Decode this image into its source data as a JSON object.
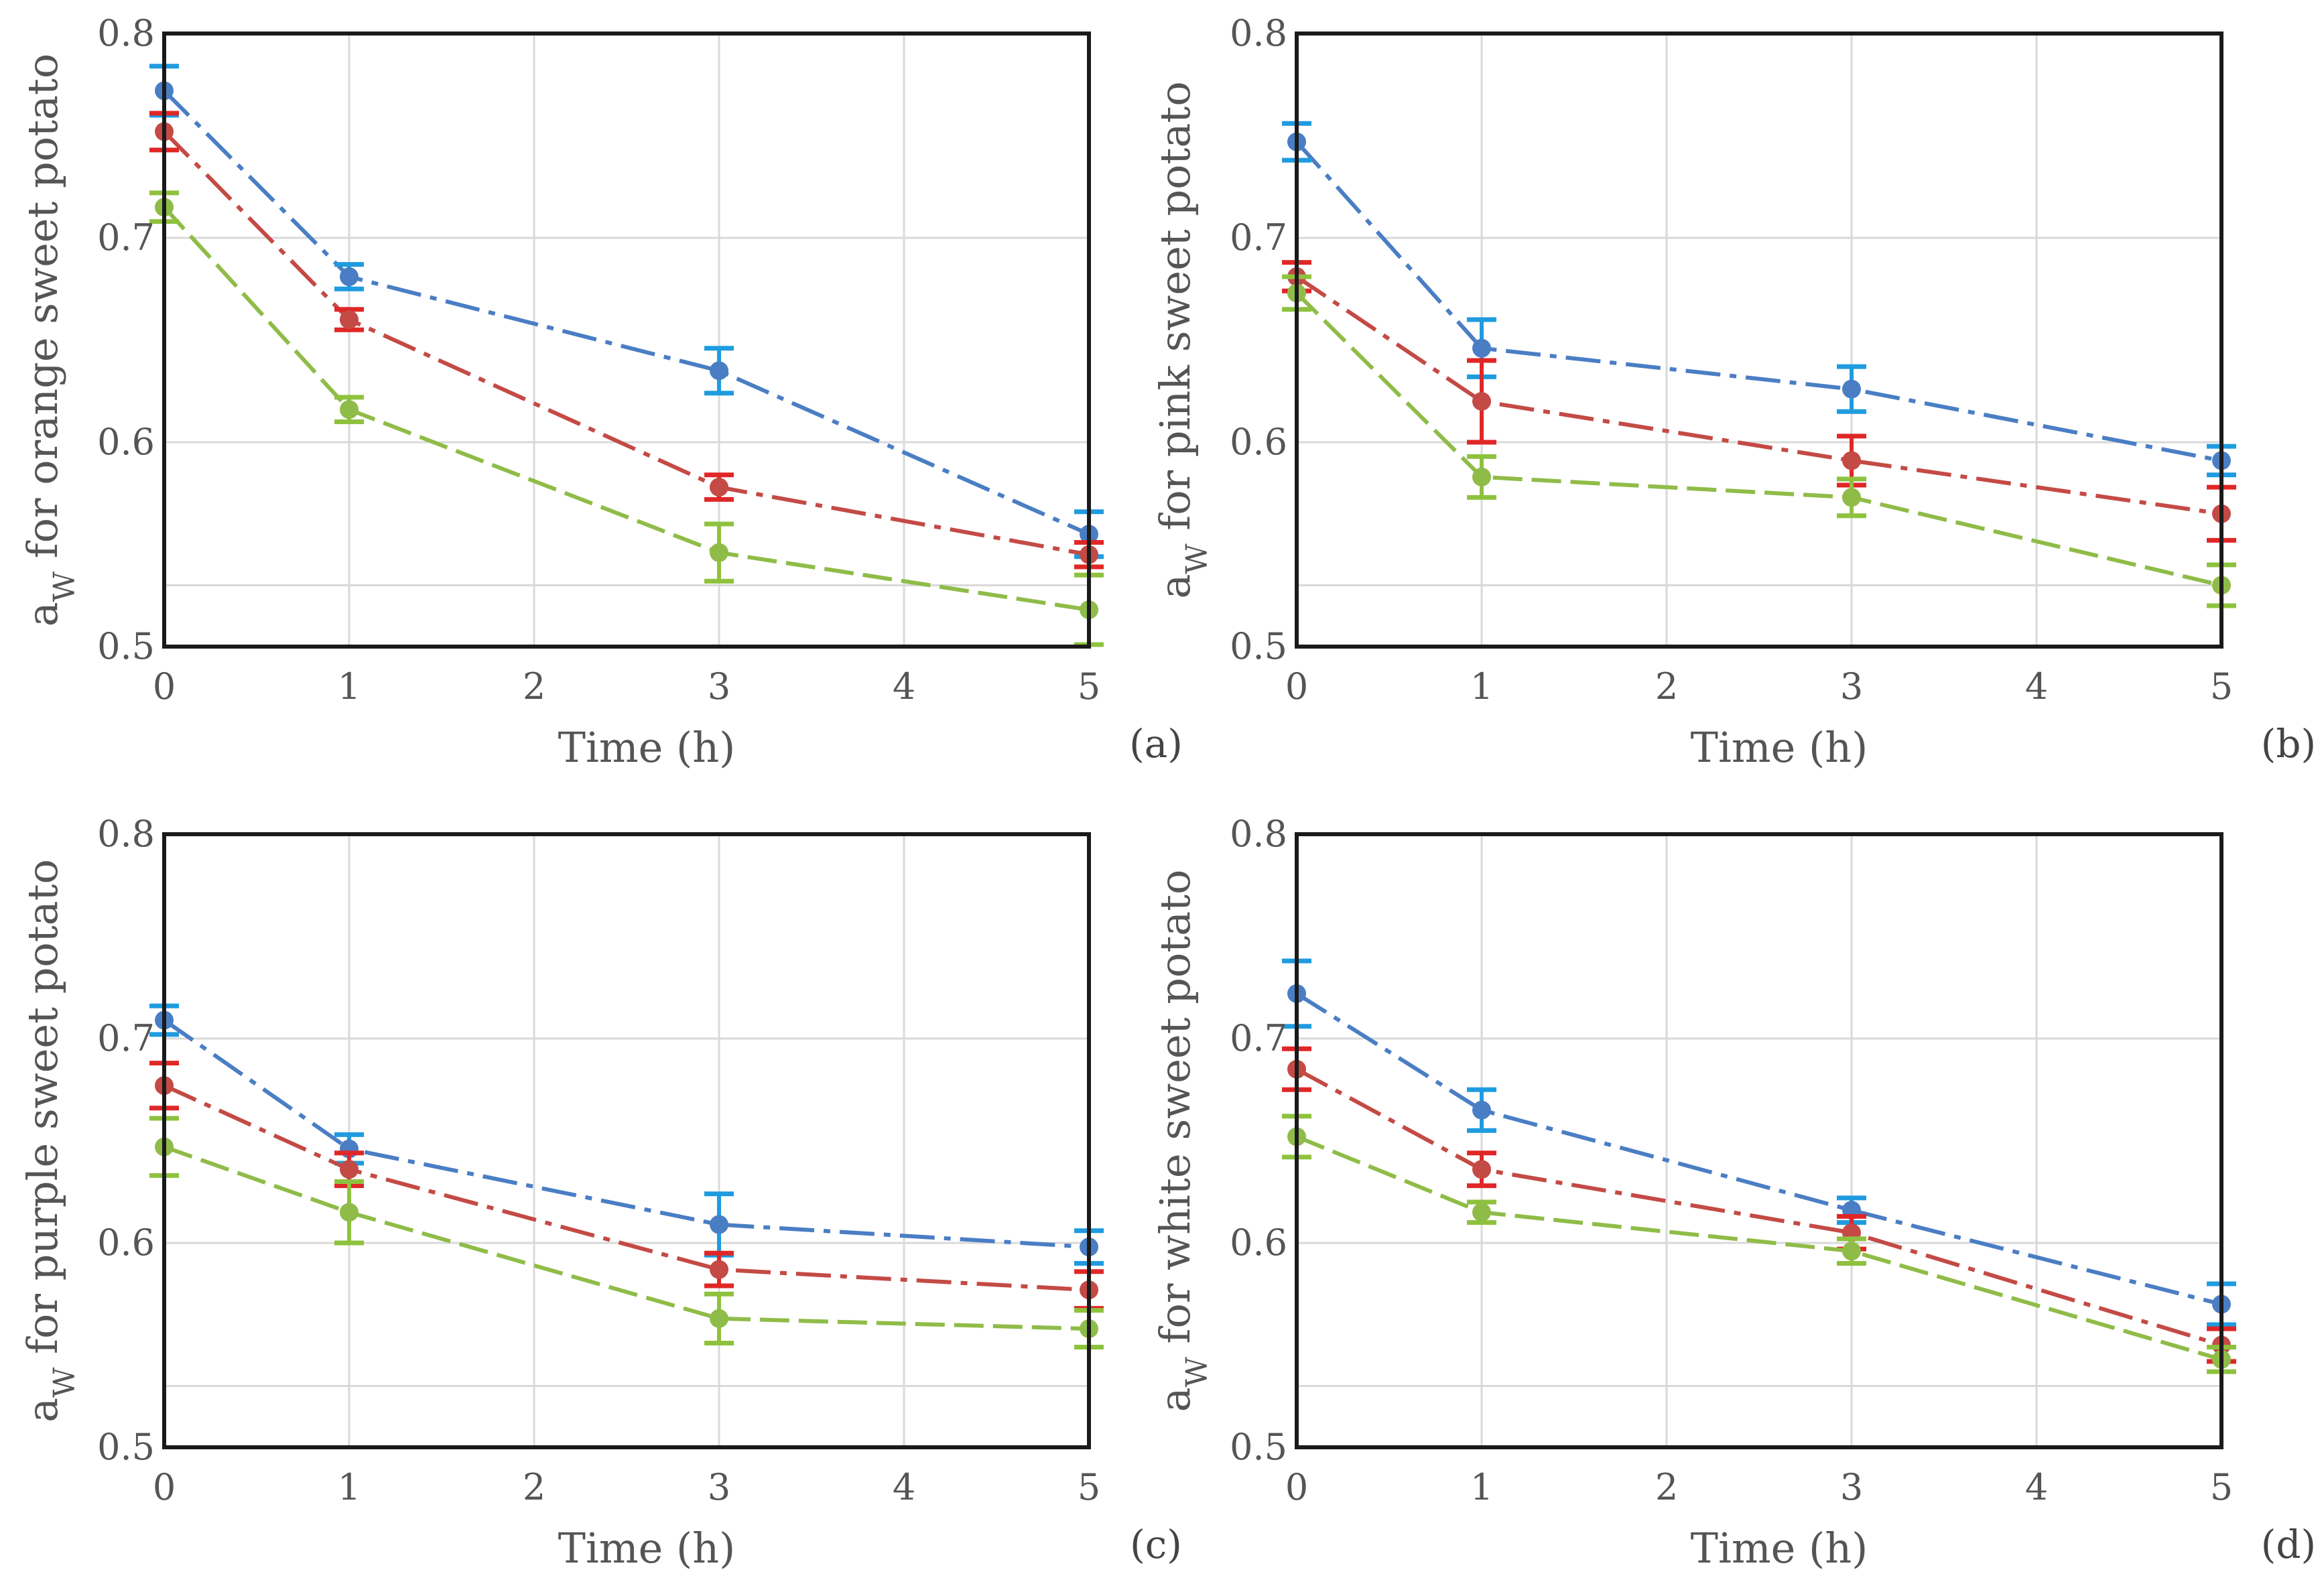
{
  "colors": {
    "series_lines": [
      "#4a7ec4",
      "#c44a45",
      "#8fbc48"
    ],
    "series_errorbars": [
      "#1f9be0",
      "#e02727",
      "#8ec23e"
    ],
    "grid": "#d9d9d9",
    "frame": "#1a1a1a",
    "text": "#555555"
  },
  "chart_data": [
    {
      "type": "line",
      "panel": "(a)",
      "xlabel": "Time (h)",
      "ylabel_prefix": "a",
      "ylabel_sub": "W",
      "ylabel_rest": " for orange sweet potato",
      "xlim": [
        0,
        5
      ],
      "ylim": [
        0.5,
        0.8
      ],
      "xticks": [
        "0",
        "1",
        "2",
        "3",
        "4",
        "5"
      ],
      "yticks": [
        "0.5",
        "0.6",
        "0.7",
        "0.8"
      ],
      "x": [
        0,
        1,
        3,
        5
      ],
      "series": [
        {
          "values": [
            0.772,
            0.681,
            0.635,
            0.555
          ],
          "errors": [
            0.012,
            0.006,
            0.011,
            0.011
          ]
        },
        {
          "values": [
            0.752,
            0.66,
            0.578,
            0.545
          ],
          "errors": [
            0.009,
            0.005,
            0.006,
            0.006
          ]
        },
        {
          "values": [
            0.715,
            0.616,
            0.546,
            0.518
          ],
          "errors": [
            0.007,
            0.006,
            0.014,
            0.017
          ]
        }
      ]
    },
    {
      "type": "line",
      "panel": "(b)",
      "xlabel": "Time (h)",
      "ylabel_prefix": "a",
      "ylabel_sub": "W",
      "ylabel_rest": " for pink sweet potato",
      "xlim": [
        0,
        5
      ],
      "ylim": [
        0.5,
        0.8
      ],
      "xticks": [
        "0",
        "1",
        "2",
        "3",
        "4",
        "5"
      ],
      "yticks": [
        "0.5",
        "0.6",
        "0.7",
        "0.8"
      ],
      "x": [
        0,
        1,
        3,
        5
      ],
      "series": [
        {
          "values": [
            0.747,
            0.646,
            0.626,
            0.591
          ],
          "errors": [
            0.009,
            0.014,
            0.011,
            0.007
          ]
        },
        {
          "values": [
            0.681,
            0.62,
            0.591,
            0.565
          ],
          "errors": [
            0.007,
            0.02,
            0.012,
            0.013
          ]
        },
        {
          "values": [
            0.673,
            0.583,
            0.573,
            0.53
          ],
          "errors": [
            0.008,
            0.01,
            0.009,
            0.01
          ]
        }
      ]
    },
    {
      "type": "line",
      "panel": "(c)",
      "xlabel": "Time (h)",
      "ylabel_prefix": "a",
      "ylabel_sub": "W",
      "ylabel_rest": " for purple sweet potato",
      "xlim": [
        0,
        5
      ],
      "ylim": [
        0.5,
        0.8
      ],
      "xticks": [
        "0",
        "1",
        "2",
        "3",
        "4",
        "5"
      ],
      "yticks": [
        "0.5",
        "0.6",
        "0.7",
        "0.8"
      ],
      "x": [
        0,
        1,
        3,
        5
      ],
      "series": [
        {
          "values": [
            0.709,
            0.646,
            0.609,
            0.598
          ],
          "errors": [
            0.007,
            0.007,
            0.015,
            0.008
          ]
        },
        {
          "values": [
            0.677,
            0.636,
            0.587,
            0.577
          ],
          "errors": [
            0.011,
            0.008,
            0.008,
            0.009
          ]
        },
        {
          "values": [
            0.647,
            0.615,
            0.563,
            0.558
          ],
          "errors": [
            0.014,
            0.015,
            0.012,
            0.009
          ]
        }
      ]
    },
    {
      "type": "line",
      "panel": "(d)",
      "xlabel": "Time (h)",
      "ylabel_prefix": "a",
      "ylabel_sub": "W",
      "ylabel_rest": " for white sweet potato",
      "xlim": [
        0,
        5
      ],
      "ylim": [
        0.5,
        0.8
      ],
      "xticks": [
        "0",
        "1",
        "2",
        "3",
        "4",
        "5"
      ],
      "yticks": [
        "0.5",
        "0.6",
        "0.7",
        "0.8"
      ],
      "x": [
        0,
        1,
        3,
        5
      ],
      "series": [
        {
          "values": [
            0.722,
            0.665,
            0.616,
            0.57
          ],
          "errors": [
            0.016,
            0.01,
            0.006,
            0.01
          ]
        },
        {
          "values": [
            0.685,
            0.636,
            0.605,
            0.55
          ],
          "errors": [
            0.01,
            0.008,
            0.008,
            0.008
          ]
        },
        {
          "values": [
            0.652,
            0.615,
            0.596,
            0.543
          ],
          "errors": [
            0.01,
            0.005,
            0.006,
            0.006
          ]
        }
      ]
    }
  ]
}
